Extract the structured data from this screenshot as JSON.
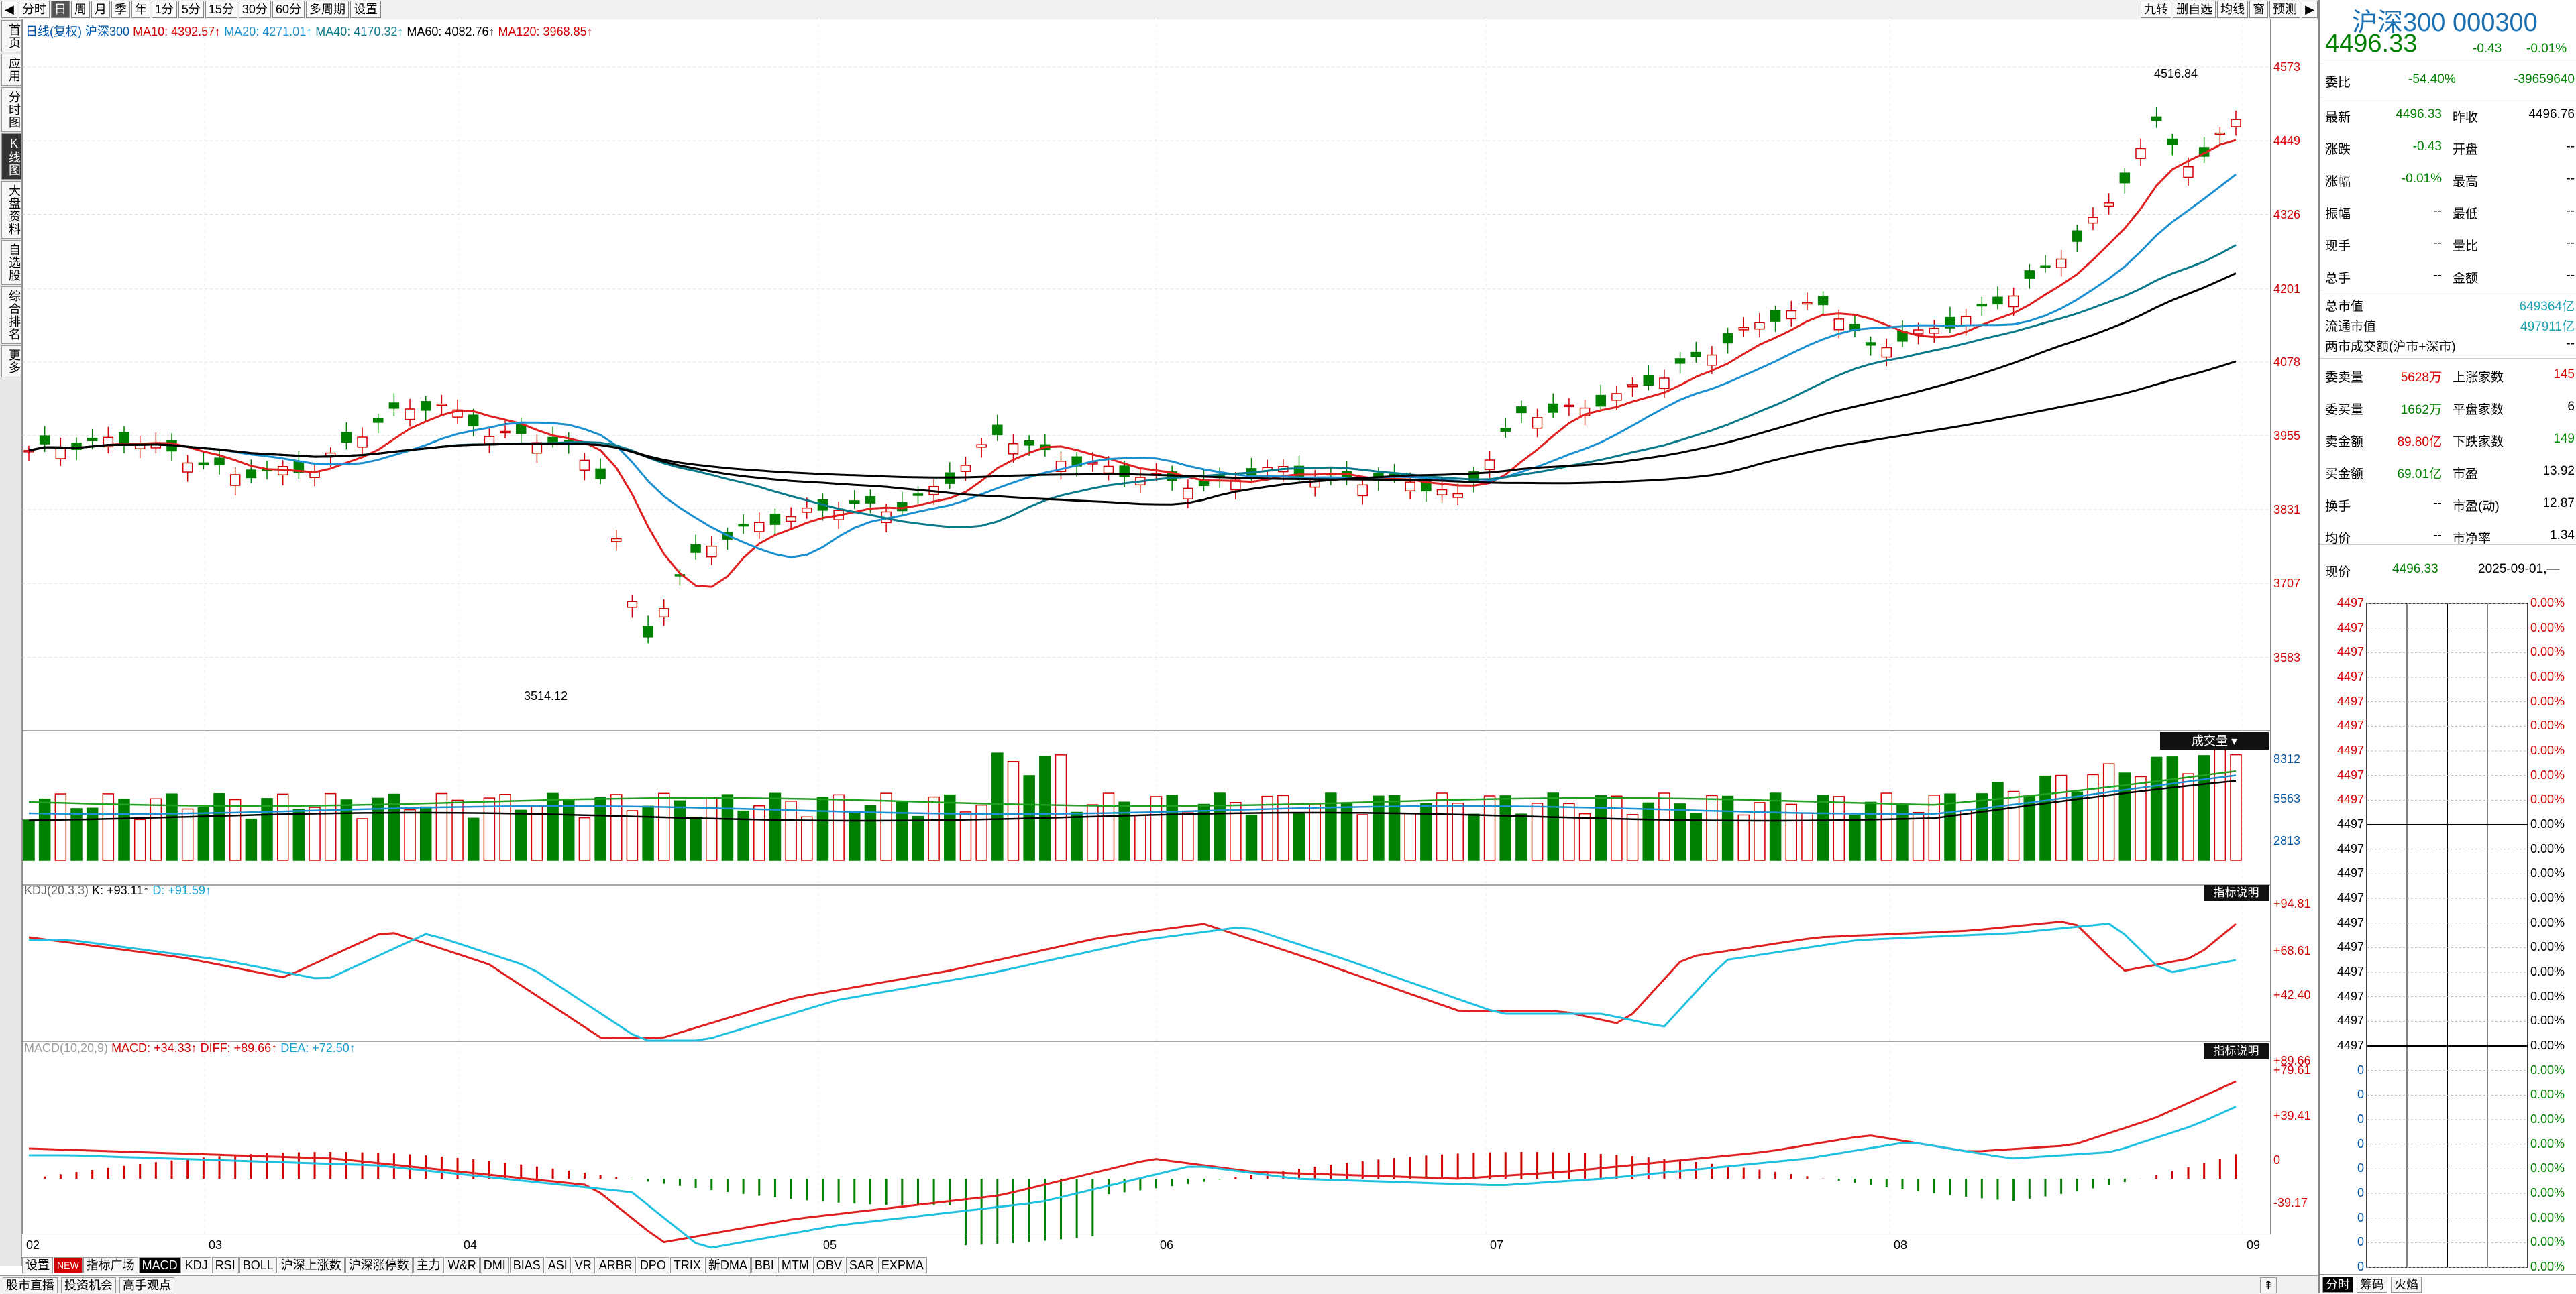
{
  "toolbar": {
    "items": [
      "分时",
      "日",
      "周",
      "月",
      "季",
      "年",
      "1分",
      "5分",
      "15分",
      "30分",
      "60分",
      "多周期",
      "设置"
    ],
    "active_index": 1,
    "right_items": [
      "九转",
      "删自选",
      "均线",
      "窗",
      "预测"
    ]
  },
  "nav": {
    "items": [
      "首页",
      "应用",
      "分时图",
      "K线图",
      "大盘资料",
      "自选股",
      "综合排名",
      "更多"
    ],
    "active_index": 3
  },
  "legend": {
    "period": "日线(复权)",
    "name": "沪深300",
    "ma10": "MA10: 4392.57↑",
    "ma20": "MA20: 4271.01↑",
    "ma40": "MA40: 4170.32↑",
    "ma60": "MA60: 4082.76↑",
    "ma120": "MA120: 3968.85↑"
  },
  "price_axis": [
    "4573",
    "4449",
    "4326",
    "4201",
    "4078",
    "3955",
    "3831",
    "3707",
    "3583"
  ],
  "price_range": [
    3460,
    4620
  ],
  "annotations": {
    "high": "4516.84",
    "low": "3514.12"
  },
  "volume": {
    "badge": "成交量",
    "axis": [
      "8312",
      "5563",
      "2813"
    ]
  },
  "kdj": {
    "title": "KDJ(20,3,3)",
    "k": "K: +93.11↑",
    "d": "D: +91.59↑",
    "axis": [
      "+94.81",
      "+68.61",
      "+42.40"
    ],
    "badge": "指标说明"
  },
  "macd": {
    "title": "MACD(10,20,9)",
    "macd": "MACD: +34.33↑",
    "diff": "DIFF: +89.66↑",
    "dea": "DEA: +72.50↑",
    "axis": [
      "+89.66",
      "+79.61",
      "+39.41",
      "0",
      "-39.17"
    ],
    "badge": "指标说明"
  },
  "x_axis": [
    "02",
    "03",
    "04",
    "05",
    "06",
    "07",
    "08",
    "09"
  ],
  "bottom_tabs": [
    "设置",
    "NEW",
    "指标广场",
    "MACD",
    "KDJ",
    "RSI",
    "BOLL",
    "沪深上涨数",
    "沪深涨停数",
    "主力",
    "W&R",
    "DMI",
    "BIAS",
    "ASI",
    "VR",
    "ARBR",
    "DPO",
    "TRIX",
    "新DMA",
    "BBI",
    "MTM",
    "OBV",
    "SAR",
    "EXPMA"
  ],
  "bottom_active": 3,
  "status": [
    "股市直播",
    "投资机会",
    "高手观点"
  ],
  "quote": {
    "title": "沪深300 000300",
    "price": "4496.33",
    "change": "-0.43",
    "pct": "-0.01%",
    "wei_bi_label": "委比",
    "wei_bi": "-54.40%",
    "wei_cha": "-39659640",
    "rows": [
      [
        "最新",
        "4496.33",
        "昨收",
        "4496.76"
      ],
      [
        "涨跌",
        "-0.43",
        "开盘",
        "--"
      ],
      [
        "涨幅",
        "-0.01%",
        "最高",
        "--"
      ],
      [
        "振幅",
        "--",
        "最低",
        "--"
      ],
      [
        "现手",
        "--",
        "量比",
        "--"
      ],
      [
        "总手",
        "--",
        "金额",
        "--"
      ]
    ],
    "mcap_label": "总市值",
    "mcap": "649364亿",
    "float_label": "流通市值",
    "float": "497911亿",
    "turnover_label": "两市成交额(沪市+深市)",
    "turnover": "--",
    "rows2": [
      [
        "委卖量",
        "5628万",
        "上涨家数",
        "145"
      ],
      [
        "委买量",
        "1662万",
        "平盘家数",
        "6"
      ],
      [
        "卖金额",
        "89.80亿",
        "下跌家数",
        "149"
      ],
      [
        "买金额",
        "69.01亿",
        "市盈",
        "13.92"
      ],
      [
        "换手",
        "--",
        "市盈(动)",
        "12.87"
      ],
      [
        "均价",
        "--",
        "市净率",
        "1.34"
      ]
    ],
    "now_label": "现价",
    "now_price": "4496.33",
    "now_date": "2025-09-01,—",
    "mini_left": [
      "4497",
      "4497",
      "4497",
      "4497",
      "4497",
      "4497",
      "4497",
      "4497",
      "4497",
      "4497",
      "4497",
      "4497",
      "4497",
      "4497",
      "4497",
      "4497",
      "4497",
      "4497",
      "4497",
      "0",
      "0",
      "0",
      "0",
      "0",
      "0",
      "0",
      "0",
      "0"
    ],
    "mini_right": [
      "0.00%",
      "0.00%",
      "0.00%",
      "0.00%",
      "0.00%",
      "0.00%",
      "0.00%",
      "0.00%",
      "0.00%",
      "0.00%",
      "0.00%",
      "0.00%",
      "0.00%",
      "0.00%",
      "0.00%",
      "0.00%",
      "0.00%",
      "0.00%",
      "0.00%",
      "0.00%",
      "0.00%",
      "0.00%",
      "0.00%",
      "0.00%",
      "0.00%",
      "0.00%",
      "0.00%",
      "0.00%"
    ],
    "bottom_tabs": [
      "分时",
      "筹码",
      "火焰"
    ]
  },
  "colors": {
    "up": "#d20000",
    "down": "#008000",
    "ma10": "#e02020",
    "ma20": "#1a90d0",
    "ma40": "#0a7a8a",
    "ma60": "#000000",
    "ma120": "#000000"
  }
}
